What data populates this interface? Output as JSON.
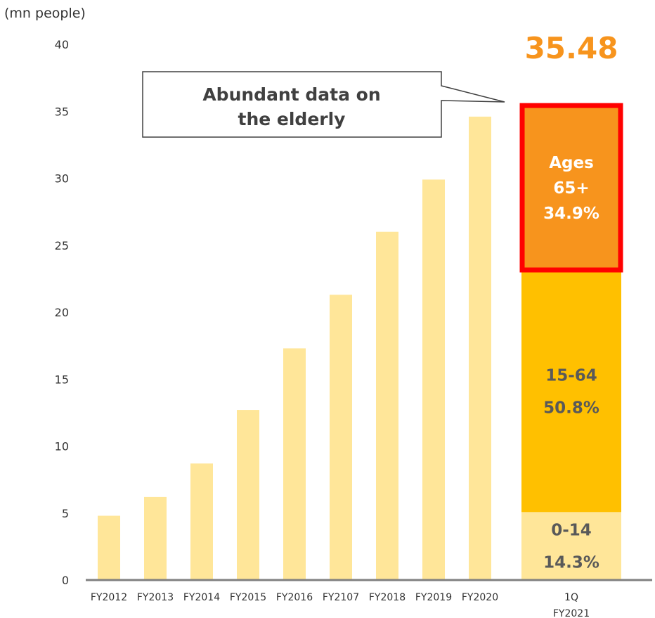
{
  "unit_label": "(mn people)",
  "callout": {
    "line1": "Abundant data on",
    "line2": "the elderly"
  },
  "colors": {
    "bar": "#FFE699",
    "seg_0_14": "#FFE699",
    "seg_15_64": "#FFC000",
    "seg_65_plus": "#F7941D",
    "highlight_border": "#FF0000",
    "total_text": "#F7941D",
    "label_dark": "#595959",
    "label_light": "#FFFFFF",
    "axis": "#808080"
  },
  "chart_data": {
    "type": "bar",
    "ylim": [
      0,
      40
    ],
    "yticks": [
      0,
      5,
      10,
      15,
      20,
      25,
      30,
      35,
      40
    ],
    "grid": false,
    "bars": [
      {
        "label": "FY2012",
        "value": 4.8
      },
      {
        "label": "FY2013",
        "value": 6.2
      },
      {
        "label": "FY2014",
        "value": 8.7
      },
      {
        "label": "FY2015",
        "value": 12.7
      },
      {
        "label": "FY2016",
        "value": 17.3
      },
      {
        "label": "FY2107",
        "value": 21.3
      },
      {
        "label": "FY2018",
        "value": 26.0
      },
      {
        "label": "FY2019",
        "value": 29.9
      },
      {
        "label": "FY2020",
        "value": 34.6
      }
    ],
    "stacked_bar": {
      "label_line1": "1Q",
      "label_line2": "FY2021",
      "total": 35.48,
      "total_label": "35.48",
      "segments": [
        {
          "name": "0-14",
          "share": 14.3,
          "lines": [
            "0-14",
            "14.3%"
          ]
        },
        {
          "name": "15-64",
          "share": 50.8,
          "lines": [
            "15-64",
            "50.8%"
          ]
        },
        {
          "name": "Ages 65+",
          "share": 34.9,
          "lines": [
            "Ages",
            "65+",
            "34.9%"
          ],
          "highlighted": true
        }
      ]
    }
  }
}
